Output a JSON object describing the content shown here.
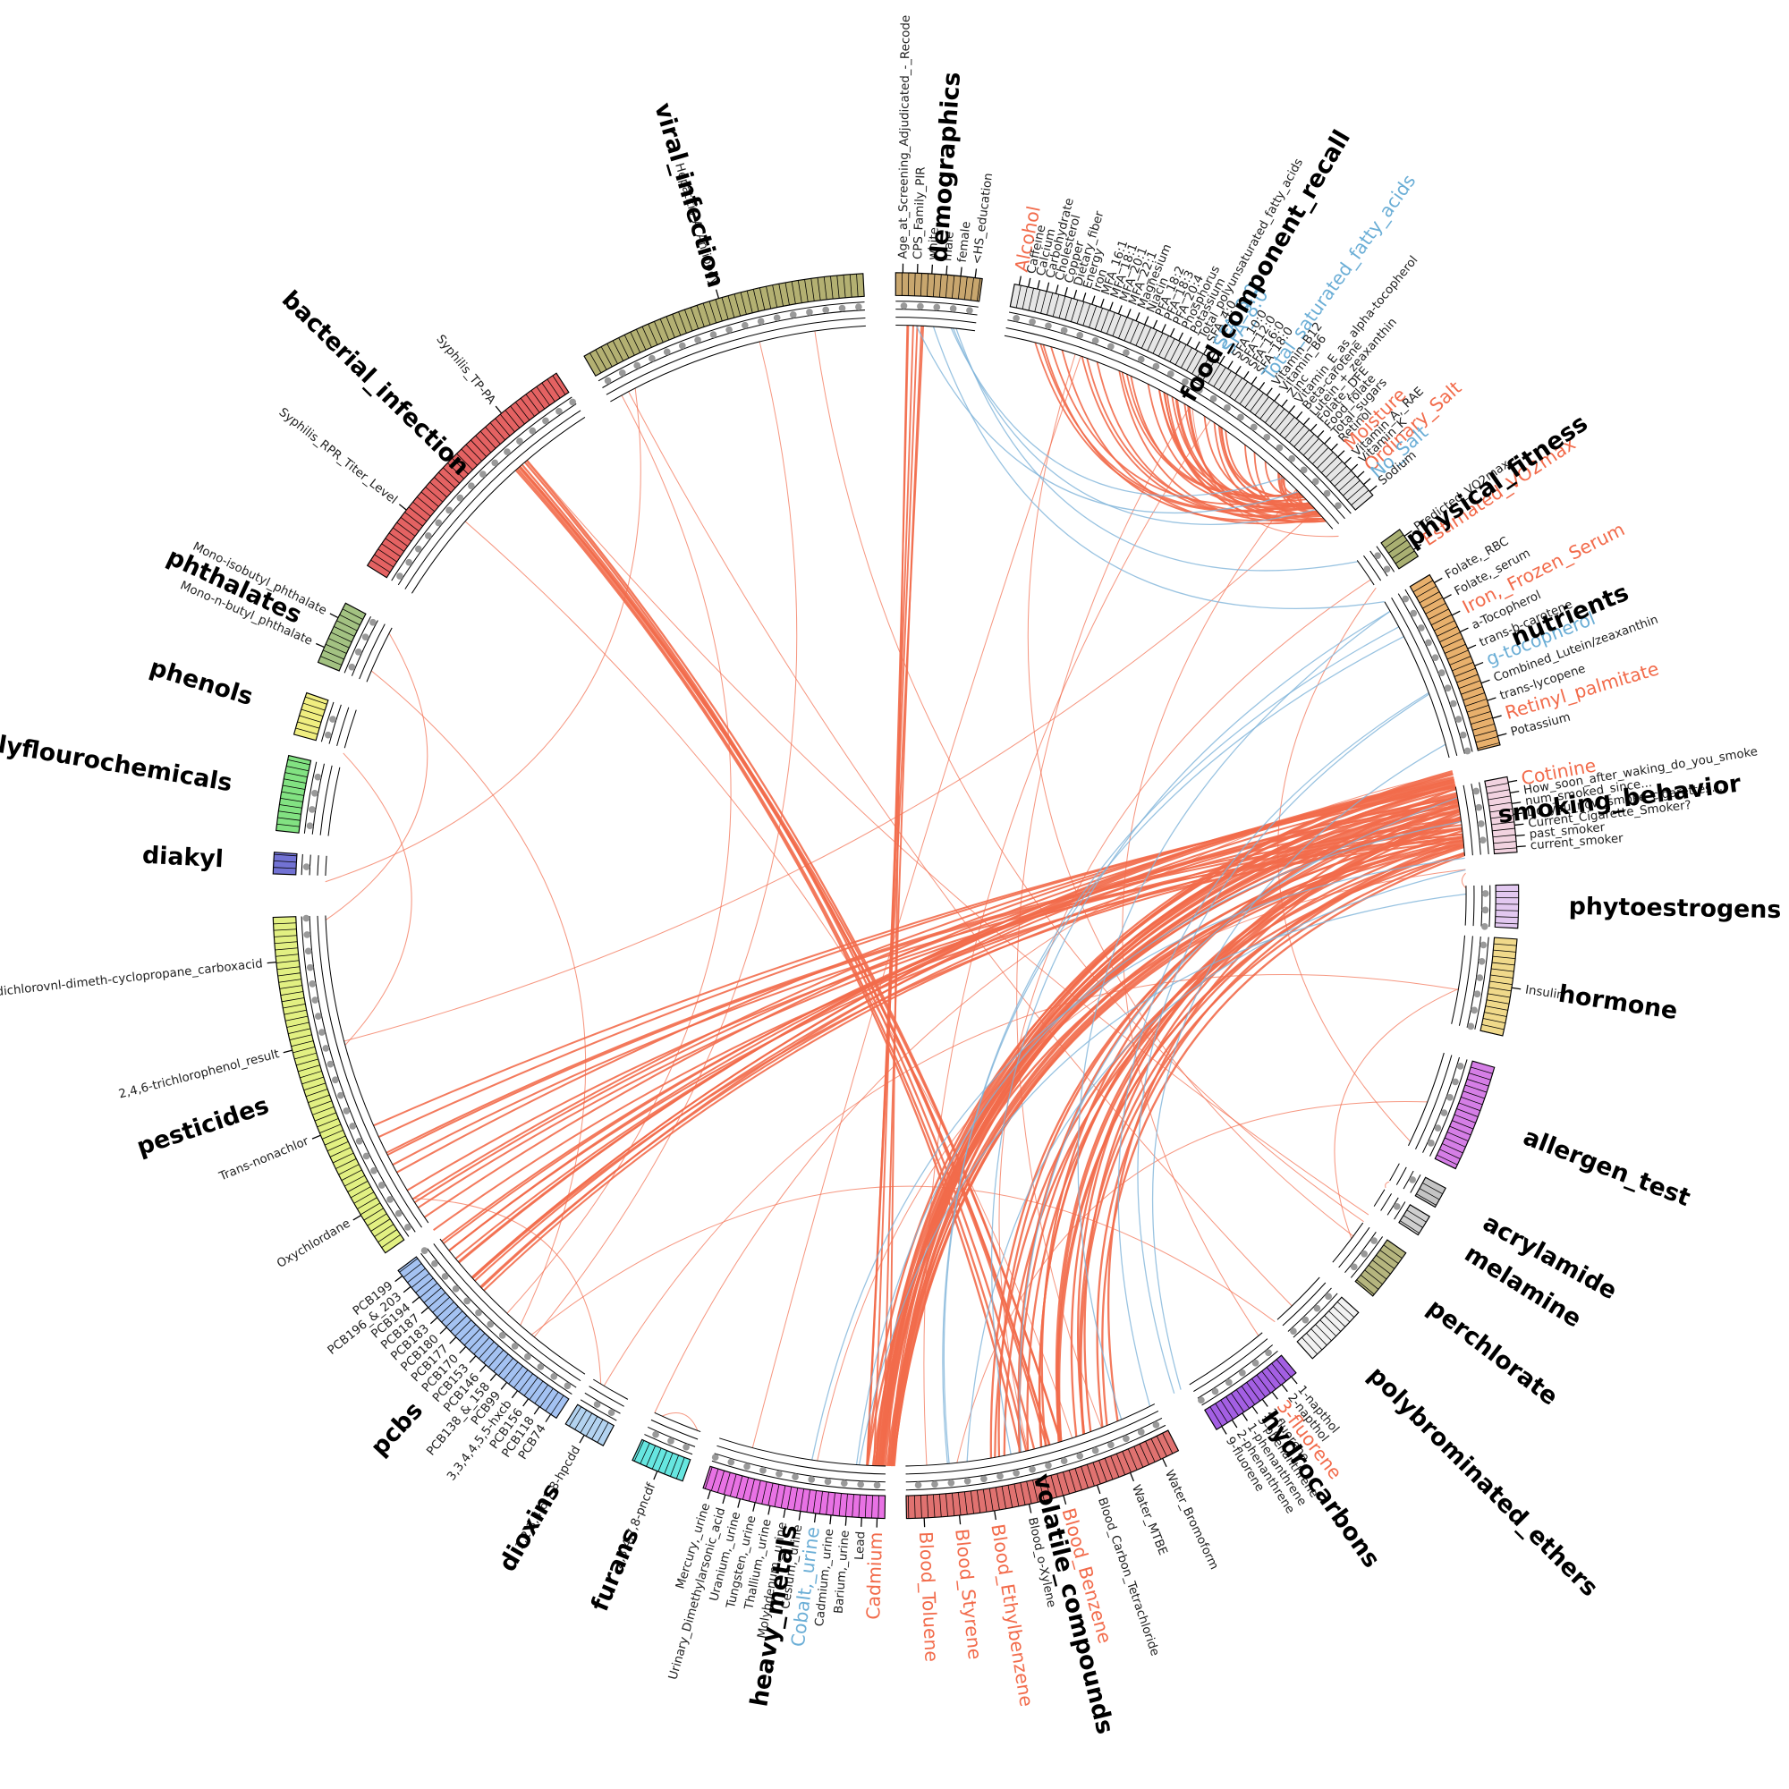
{
  "groups": [
    {
      "name": "demographics",
      "color": "#c8a66e",
      "labels": [
        {
          "text": "Age_at_Screening_Adjudicated_-_Recode",
          "color": "#222"
        },
        {
          "text": "CPS_Family_PIR",
          "color": "#222"
        },
        {
          "text": "white",
          "color": "#222"
        },
        {
          "text": "male",
          "color": "#222"
        },
        {
          "text": "female",
          "color": "#222"
        },
        {
          "text": "<HS_education",
          "color": "#222"
        }
      ]
    },
    {
      "name": "food_component_recall",
      "color": "#e6e6e6",
      "labels": [
        {
          "text": "Alcohol",
          "color": "#f26b4b"
        },
        {
          "text": "Caffeine",
          "color": "#222"
        },
        {
          "text": "Calcium",
          "color": "#222"
        },
        {
          "text": "Carbohydrate",
          "color": "#222"
        },
        {
          "text": "Cholesterol",
          "color": "#222"
        },
        {
          "text": "Copper",
          "color": "#222"
        },
        {
          "text": "Dietary_fiber",
          "color": "#222"
        },
        {
          "text": "Energy",
          "color": "#222"
        },
        {
          "text": "Iron",
          "color": "#222"
        },
        {
          "text": "MFA_16:1",
          "color": "#222"
        },
        {
          "text": "MFA_18:1",
          "color": "#222"
        },
        {
          "text": "MFA_20:1",
          "color": "#222"
        },
        {
          "text": "MFA_22:1",
          "color": "#222"
        },
        {
          "text": "Magnesium",
          "color": "#222"
        },
        {
          "text": "Niacin",
          "color": "#222"
        },
        {
          "text": "PFA_18:2",
          "color": "#222"
        },
        {
          "text": "PFA_18:3",
          "color": "#222"
        },
        {
          "text": "PFA_20:4",
          "color": "#222"
        },
        {
          "text": "Phosphorus",
          "color": "#222"
        },
        {
          "text": "Potassium",
          "color": "#222"
        },
        {
          "text": "Total_polyunsaturated_fatty_acids",
          "color": "#222"
        },
        {
          "text": "SFA_4:0",
          "color": "#222"
        },
        {
          "text": "SFA_6:0",
          "color": "#6baed6"
        },
        {
          "text": "SFA_8:0",
          "color": "#6baed6"
        },
        {
          "text": "SFA_10:0",
          "color": "#222"
        },
        {
          "text": "SFA_12:0",
          "color": "#222"
        },
        {
          "text": "SFA_16:0",
          "color": "#222"
        },
        {
          "text": "SFA_18:0",
          "color": "#222"
        },
        {
          "text": "Total_saturated_fatty_acids",
          "color": "#6baed6"
        },
        {
          "text": "Vitamin_B12",
          "color": "#222"
        },
        {
          "text": "Vitamin_B6",
          "color": "#222"
        },
        {
          "text": "Zinc",
          "color": "#222"
        },
        {
          "text": "Vitamin_E_as_alpha-tocopherol",
          "color": "#222"
        },
        {
          "text": "Beta-carotene",
          "color": "#222"
        },
        {
          "text": "Lutein_+_zeaxanthin",
          "color": "#222"
        },
        {
          "text": "Folate,_DFE",
          "color": "#222"
        },
        {
          "text": "Food_folate",
          "color": "#222"
        },
        {
          "text": "Total_sugars",
          "color": "#222"
        },
        {
          "text": "Retinol",
          "color": "#222"
        },
        {
          "text": "Moisture",
          "color": "#f26b4b"
        },
        {
          "text": "Vitamin_A,_RAE",
          "color": "#222"
        },
        {
          "text": "Vitamin_K",
          "color": "#222"
        },
        {
          "text": "Ordinary_Salt",
          "color": "#f26b4b"
        },
        {
          "text": "No_Salt",
          "color": "#6baed6"
        },
        {
          "text": "Sodium",
          "color": "#222"
        }
      ]
    },
    {
      "name": "physical_fitness",
      "color": "#a9b072",
      "labels": [
        {
          "text": "Predicted_VO2max",
          "color": "#222"
        },
        {
          "text": "Estimated_VO2max",
          "color": "#f26b4b"
        }
      ]
    },
    {
      "name": "nutrients",
      "color": "#e8b06c",
      "labels": [
        {
          "text": "Folate,_RBC",
          "color": "#222"
        },
        {
          "text": "Folate,_serum",
          "color": "#222"
        },
        {
          "text": "Iron,_Frozen_Serum",
          "color": "#f26b4b"
        },
        {
          "text": "a-Tocopherol",
          "color": "#222"
        },
        {
          "text": "trans-b-carotene",
          "color": "#222"
        },
        {
          "text": "g-tocopherol",
          "color": "#6baed6"
        },
        {
          "text": "Combined_Lutein/zeaxanthin",
          "color": "#222"
        },
        {
          "text": "trans-lycopene",
          "color": "#222"
        },
        {
          "text": "Retinyl_palmitate",
          "color": "#f26b4b"
        },
        {
          "text": "Potassium",
          "color": "#222"
        }
      ]
    },
    {
      "name": "smoking_behavior",
      "color": "#f2d3e0",
      "labels": [
        {
          "text": "Cotinine",
          "color": "#f26b4b"
        },
        {
          "text": "How_soon_after_waking_do_you_smoke",
          "color": "#222"
        },
        {
          "text": "num_smoked_since...",
          "color": "#222"
        },
        {
          "text": "Do_you_now_smoke_cigarettes...",
          "color": "#222"
        },
        {
          "text": "Current_Cigarette_Smoker?",
          "color": "#222"
        },
        {
          "text": "past_smoker",
          "color": "#222"
        },
        {
          "text": "current_smoker",
          "color": "#222"
        }
      ]
    },
    {
      "name": "phytoestrogens",
      "color": "#e2c8f0",
      "labels": []
    },
    {
      "name": "hormone",
      "color": "#f0d98a",
      "labels": [
        {
          "text": "Insulin",
          "color": "#222"
        }
      ]
    },
    {
      "name": "allergen_test",
      "color": "#d57ee6",
      "labels": []
    },
    {
      "name": "acrylamide",
      "color": "#c4c4c4",
      "labels": []
    },
    {
      "name": "melamine",
      "color": "#cfcfcf",
      "labels": []
    },
    {
      "name": "perchlorate",
      "color": "#b5b57e",
      "labels": []
    },
    {
      "name": "polybrominated_ethers",
      "color": "#f2f2f2",
      "labels": []
    },
    {
      "name": "hydrocarbons",
      "color": "#a35fe3",
      "labels": [
        {
          "text": "1-napthol",
          "color": "#222"
        },
        {
          "text": "2-napthol",
          "color": "#222"
        },
        {
          "text": "3-fluorene",
          "color": "#f26b4b"
        },
        {
          "text": "2-fluorene",
          "color": "#222"
        },
        {
          "text": "3-phenanthrene",
          "color": "#222"
        },
        {
          "text": "1-phenanthrene",
          "color": "#222"
        },
        {
          "text": "2-phenanthrene",
          "color": "#222"
        },
        {
          "text": "9-fluorene",
          "color": "#222"
        }
      ]
    },
    {
      "name": "volatile_compounds",
      "color": "#e07270",
      "labels": [
        {
          "text": "Water_Bromoform",
          "color": "#222"
        },
        {
          "text": "Water_MTBE",
          "color": "#222"
        },
        {
          "text": "Blood_Carbon_Tetrachloride",
          "color": "#222"
        },
        {
          "text": "Blood_Benzene",
          "color": "#f26b4b"
        },
        {
          "text": "Blood_o-Xylene",
          "color": "#222"
        },
        {
          "text": "Blood_Ethylbenzene",
          "color": "#f26b4b"
        },
        {
          "text": "Blood_Styrene",
          "color": "#f26b4b"
        },
        {
          "text": "Blood_Toluene",
          "color": "#f26b4b"
        }
      ]
    },
    {
      "name": "heavy_metals",
      "color": "#e872e4",
      "labels": [
        {
          "text": "Cadmium",
          "color": "#f26b4b"
        },
        {
          "text": "Lead",
          "color": "#222"
        },
        {
          "text": "Barium,_urine",
          "color": "#222"
        },
        {
          "text": "Cadmium,_urine",
          "color": "#222"
        },
        {
          "text": "Cobalt,_urine",
          "color": "#6baed6"
        },
        {
          "text": "Cesium,_urine",
          "color": "#222"
        },
        {
          "text": "Molybdenum,_urine",
          "color": "#222"
        },
        {
          "text": "Thallium,_urine",
          "color": "#222"
        },
        {
          "text": "Tungsten,_urine",
          "color": "#222"
        },
        {
          "text": "Uranium,_urine",
          "color": "#222"
        },
        {
          "text": "Urinary_Dimethylarsonic_acid",
          "color": "#222"
        },
        {
          "text": "Mercury,_urine",
          "color": "#222"
        }
      ]
    },
    {
      "name": "furans",
      "color": "#66e6e0",
      "labels": [
        {
          "text": "2,3,4,7,8-pncdf",
          "color": "#222"
        }
      ]
    },
    {
      "name": "dioxins",
      "color": "#b3d3f0",
      "labels": [
        {
          "text": "1,2,3,4,6,7,8-hpcdd",
          "color": "#222"
        }
      ]
    },
    {
      "name": "pcbs",
      "color": "#a4c2f2",
      "labels": [
        {
          "text": "PCB74",
          "color": "#222"
        },
        {
          "text": "PCB118",
          "color": "#222"
        },
        {
          "text": "PCB156",
          "color": "#222"
        },
        {
          "text": "3,3,4,4,5,5-hxcb",
          "color": "#222"
        },
        {
          "text": "PCB99",
          "color": "#222"
        },
        {
          "text": "PCB138_&_158",
          "color": "#222"
        },
        {
          "text": "PCB146",
          "color": "#222"
        },
        {
          "text": "PCB153",
          "color": "#222"
        },
        {
          "text": "PCB170",
          "color": "#222"
        },
        {
          "text": "PCB177",
          "color": "#222"
        },
        {
          "text": "PCB180",
          "color": "#222"
        },
        {
          "text": "PCB183",
          "color": "#222"
        },
        {
          "text": "PCB187",
          "color": "#222"
        },
        {
          "text": "PCB194",
          "color": "#222"
        },
        {
          "text": "PCB196_&_203",
          "color": "#222"
        },
        {
          "text": "PCB199",
          "color": "#222"
        }
      ]
    },
    {
      "name": "pesticides",
      "color": "#e2f082",
      "labels": [
        {
          "text": "Oxychlordane",
          "color": "#222"
        },
        {
          "text": "Trans-nonachlor",
          "color": "#222"
        },
        {
          "text": "2,4,6-trichlorophenol_result",
          "color": "#222"
        },
        {
          "text": "dichlorovnl-dimeth-cyclopropane_carboxacid",
          "color": "#222"
        }
      ]
    },
    {
      "name": "diakyl",
      "color": "#7272d4",
      "labels": []
    },
    {
      "name": "polyflourochemicals",
      "color": "#82e282",
      "labels": []
    },
    {
      "name": "phenols",
      "color": "#f0ee80",
      "labels": []
    },
    {
      "name": "phthalates",
      "color": "#a3c282",
      "labels": [
        {
          "text": "Mono-n-butyl_phthalate",
          "color": "#222"
        },
        {
          "text": "Mono-isobutyl_phthalate",
          "color": "#222"
        }
      ]
    },
    {
      "name": "bacterial_infection",
      "color": "#e46262",
      "labels": [
        {
          "text": "Syphilis_RPR_Titer_Level",
          "color": "#222"
        },
        {
          "text": "Syphilis_TP-PA",
          "color": "#222"
        }
      ]
    },
    {
      "name": "viral_infection",
      "color": "#b3b072",
      "labels": [
        {
          "text": "Hepatitis_A_Antibody",
          "color": "#222"
        }
      ]
    }
  ]
}
